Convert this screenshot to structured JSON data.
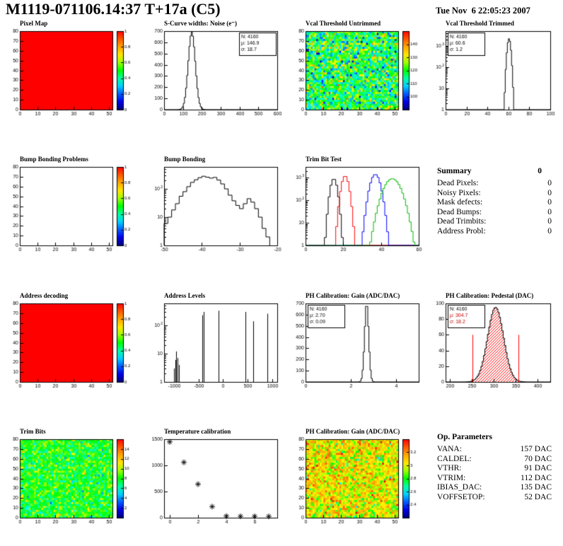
{
  "header": {
    "title": "M1119-071106.14:37 T+17a (C5)",
    "datetime": "Tue Nov  6 22:05:23 2007"
  },
  "summary": {
    "title": "Summary",
    "value": "0",
    "rows": [
      {
        "label": "Dead Pixels:",
        "value": "0"
      },
      {
        "label": "Noisy Pixels:",
        "value": "0"
      },
      {
        "label": "Mask defects:",
        "value": "0"
      },
      {
        "label": "Dead Bumps:",
        "value": "0"
      },
      {
        "label": "Dead Trimbits:",
        "value": "0"
      },
      {
        "label": "Address Probl:",
        "value": "0"
      }
    ]
  },
  "op_parameters": {
    "title": "Op. Parameters",
    "rows": [
      {
        "label": "VANA:",
        "value": "157 DAC"
      },
      {
        "label": "CALDEL:",
        "value": "70 DAC"
      },
      {
        "label": "VTHR:",
        "value": "91 DAC"
      },
      {
        "label": "VTRIM:",
        "value": "112 DAC"
      },
      {
        "label": "IBIAS_DAC:",
        "value": "135 DAC"
      },
      {
        "label": "VOFFSETOP:",
        "value": "52 DAC"
      }
    ]
  },
  "chart_data": [
    {
      "title": "Pixel Map",
      "type": "heatmap",
      "x": {
        "min": 0,
        "max": 52,
        "ticks": [
          0,
          10,
          20,
          30,
          40,
          50
        ]
      },
      "y": {
        "min": 0,
        "max": 80,
        "ticks": [
          0,
          10,
          20,
          30,
          40,
          50,
          60,
          70,
          80
        ]
      },
      "heat": {
        "mode": "solid",
        "value": 1
      },
      "colorbar": {
        "vmin": 0,
        "vmax": 1,
        "ticks": [
          0,
          0.2,
          0.4,
          0.6,
          0.8,
          1
        ]
      }
    },
    {
      "title": "S-Curve widths: Noise (e⁻)",
      "type": "hist",
      "x": {
        "min": 0,
        "max": 600,
        "ticks": [
          0,
          100,
          200,
          300,
          400,
          500,
          600
        ]
      },
      "y": {
        "min": 0,
        "max": 700,
        "ticks": [
          0,
          100,
          200,
          300,
          400,
          500,
          600,
          700
        ]
      },
      "hist": {
        "dist": "gauss",
        "mu": 146.9,
        "sigma": 18.7,
        "peak": 690,
        "dx": 6
      },
      "stats": {
        "pos": "right",
        "lines": [
          [
            "N:",
            "4160"
          ],
          [
            "μ:",
            "146.9"
          ],
          [
            "σ:",
            "18.7"
          ]
        ]
      }
    },
    {
      "title": "Vcal Threshold Untrimmed",
      "type": "heatmap",
      "x": {
        "min": 0,
        "max": 52,
        "ticks": [
          0,
          10,
          20,
          30,
          40,
          50
        ]
      },
      "y": {
        "min": 0,
        "max": 80,
        "ticks": [
          0,
          10,
          20,
          30,
          40,
          50,
          60,
          70,
          80
        ]
      },
      "heat": {
        "mode": "noise",
        "mu": 118,
        "sigma": 9,
        "seed": 42
      },
      "colorbar": {
        "vmin": 90,
        "vmax": 150,
        "ticks": [
          100,
          110,
          120,
          130,
          140
        ]
      }
    },
    {
      "title": "Vcal Threshold Trimmed",
      "type": "hist",
      "x": {
        "min": 0,
        "max": 100,
        "ticks": [
          0,
          20,
          40,
          60,
          80,
          100
        ]
      },
      "y": {
        "log": true,
        "min": 1,
        "max": 5000
      },
      "hist": {
        "dist": "gauss",
        "mu": 60.6,
        "sigma": 1.2,
        "peak": 2200,
        "dx": 1
      },
      "stats": {
        "pos": "left",
        "lines": [
          [
            "N:",
            "4160"
          ],
          [
            "μ:",
            "60.6"
          ],
          [
            "σ:",
            "1.2"
          ]
        ]
      }
    },
    {
      "title": "Bump Bonding Problems",
      "type": "empty",
      "x": {
        "min": 0,
        "max": 52,
        "ticks": [
          0,
          10,
          20,
          30,
          40,
          50
        ]
      },
      "y": {
        "min": 0,
        "max": 80,
        "ticks": [
          0,
          10,
          20,
          30,
          40,
          50,
          60,
          70,
          80
        ]
      },
      "colorbar": {
        "vmin": 0,
        "vmax": 1,
        "ticks": [
          0,
          0.2,
          0.4,
          0.6,
          0.8,
          1
        ]
      }
    },
    {
      "title": "Bump Bonding",
      "type": "hist",
      "x": {
        "min": -50,
        "max": -20,
        "ticks": [
          -50,
          -40,
          -30,
          -20
        ]
      },
      "y": {
        "log": true,
        "min": 1,
        "max": 600
      },
      "hist": {
        "x0": -50,
        "dx": 1,
        "counts": [
          6,
          10,
          18,
          30,
          55,
          80,
          120,
          170,
          210,
          250,
          280,
          260,
          240,
          255,
          205,
          150,
          100,
          60,
          38,
          26,
          20,
          30,
          45,
          34,
          20,
          10,
          4,
          2
        ]
      }
    },
    {
      "title": "Trim Bit Test",
      "type": "multihist",
      "x": {
        "min": 0,
        "max": 60,
        "ticks": [
          0,
          20,
          40,
          60
        ]
      },
      "y": {
        "log": true,
        "min": 1,
        "max": 3000
      },
      "series": [
        {
          "color": "#000000",
          "mu": 15,
          "sigma": 1.3,
          "peak": 900,
          "dx": 1
        },
        {
          "color": "#ff0000",
          "mu": 21,
          "sigma": 1.4,
          "peak": 1200,
          "dx": 1
        },
        {
          "color": "#0000ff",
          "mu": 37,
          "sigma": 1.9,
          "peak": 1400,
          "dx": 1
        },
        {
          "color": "#00bb00",
          "mu": 46,
          "sigma": 3.2,
          "peak": 900,
          "dx": 1
        }
      ]
    },
    {
      "title": "Address decoding",
      "type": "heatmap",
      "x": {
        "min": 0,
        "max": 52,
        "ticks": [
          0,
          10,
          20,
          30,
          40,
          50
        ]
      },
      "y": {
        "min": 0,
        "max": 80,
        "ticks": [
          0,
          10,
          20,
          30,
          40,
          50,
          60,
          70,
          80
        ]
      },
      "heat": {
        "mode": "solid",
        "value": 1
      },
      "colorbar": {
        "vmin": 0,
        "vmax": 1,
        "ticks": [
          0,
          0.2,
          0.4,
          0.6,
          0.8,
          1
        ]
      }
    },
    {
      "title": "Address Levels",
      "type": "spikes",
      "x": {
        "min": -1200,
        "max": 1100,
        "ticks": [
          -1000,
          -500,
          0,
          500,
          1000
        ]
      },
      "y": {
        "log": true,
        "min": 1,
        "max": 600
      },
      "spikes": [
        [
          -1000,
          3
        ],
        [
          -975,
          6
        ],
        [
          -950,
          12
        ],
        [
          -925,
          7
        ],
        [
          -900,
          4
        ],
        [
          -430,
          230
        ],
        [
          -400,
          300
        ],
        [
          -100,
          330
        ],
        [
          455,
          300
        ],
        [
          610,
          140
        ],
        [
          893,
          260
        ]
      ]
    },
    {
      "title": "PH Calibration: Gain (ADC/DAC)",
      "type": "hist",
      "x": {
        "min": 0,
        "max": 5,
        "ticks": [
          0,
          2,
          4
        ]
      },
      "y": {
        "min": 0,
        "max": 700,
        "ticks": [
          0,
          100,
          200,
          300,
          400,
          500,
          600,
          700
        ]
      },
      "hist": {
        "dist": "gauss",
        "mu": 2.7,
        "sigma": 0.09,
        "peak": 700,
        "dx": 0.05
      },
      "stats": {
        "pos": "left",
        "lines": [
          [
            "N:",
            "4160"
          ],
          [
            "μ:",
            "2.70"
          ],
          [
            "σ:",
            "0.09"
          ]
        ]
      }
    },
    {
      "title": "PH Calibration: Pedestal (DAC)",
      "type": "hist",
      "x": {
        "min": 190,
        "max": 430,
        "ticks": [
          200,
          250,
          300,
          350,
          400
        ]
      },
      "y": {
        "min": 0,
        "max": 100,
        "ticks": [
          0,
          20,
          40,
          60,
          80,
          100
        ]
      },
      "hist": {
        "dist": "gauss",
        "mu": 304.7,
        "sigma": 18.2,
        "peak": 95,
        "dx": 3
      },
      "fill": {
        "hatch": true,
        "color": "#ff0000"
      },
      "markers": {
        "x": [
          252,
          357
        ],
        "height": 0.6,
        "color": "#ff0000"
      },
      "stats": {
        "pos": "left",
        "lines": [
          [
            "N:",
            "4160"
          ],
          [
            "μ:",
            "304.7"
          ],
          [
            "σ:",
            "18.2"
          ]
        ],
        "colors": [
          "#000000",
          "#cc0000",
          "#cc0000"
        ]
      }
    },
    {
      "title": "Trim Bits",
      "type": "heatmap",
      "x": {
        "min": 0,
        "max": 52,
        "ticks": [
          0,
          10,
          20,
          30,
          40,
          50
        ]
      },
      "y": {
        "min": 0,
        "max": 80,
        "ticks": [
          0,
          10,
          20,
          30,
          40,
          50,
          60,
          70,
          80
        ]
      },
      "heat": {
        "mode": "noise",
        "mu": 8,
        "sigma": 1.3,
        "seed": 7
      },
      "colorbar": {
        "vmin": 0,
        "vmax": 16,
        "ticks": [
          2,
          4,
          6,
          8,
          10,
          12,
          14
        ]
      }
    },
    {
      "title": "Temperature calibration",
      "type": "scatter",
      "x": {
        "min": -0.4,
        "max": 7.6,
        "ticks": [
          0,
          2,
          4,
          6
        ]
      },
      "y": {
        "min": 0,
        "max": 1500,
        "ticks": [
          0,
          500,
          1000,
          1500
        ]
      },
      "points": [
        [
          0,
          1449
        ],
        [
          1,
          1058
        ],
        [
          2,
          641
        ],
        [
          3,
          212
        ],
        [
          4,
          30
        ],
        [
          5,
          27
        ],
        [
          6,
          26
        ],
        [
          7,
          25
        ]
      ]
    },
    {
      "title": "PH Calibration: Gain (ADC/DAC)",
      "type": "heatmap",
      "x": {
        "min": 0,
        "max": 52,
        "ticks": [
          0,
          10,
          20,
          30,
          40,
          50
        ]
      },
      "y": {
        "min": 0,
        "max": 80,
        "ticks": [
          0,
          10,
          20,
          30,
          40,
          50,
          60,
          70,
          80
        ]
      },
      "heat": {
        "mode": "noise",
        "mu": 3.02,
        "sigma": 0.14,
        "seed": 13
      },
      "colorbar": {
        "vmin": 2.2,
        "vmax": 3.4,
        "ticks": [
          2.4,
          2.6,
          2.8,
          3,
          3.2
        ]
      }
    }
  ]
}
